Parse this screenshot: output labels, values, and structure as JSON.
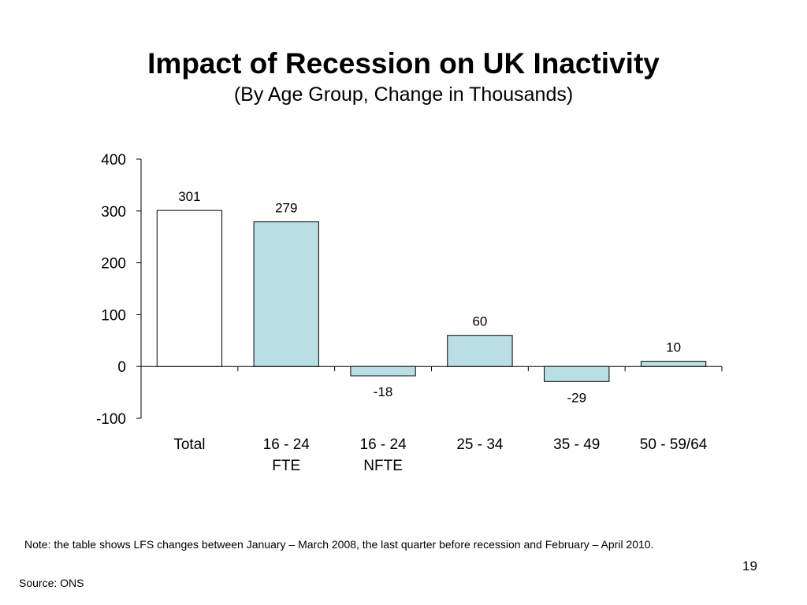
{
  "slide": {
    "title": "Impact of Recession on UK Inactivity",
    "subtitle": "(By Age Group, Change in Thousands)",
    "note": "Note: the table shows LFS changes between January – March 2008, the last quarter before recession and February – April 2010.",
    "source": "Source: ONS",
    "page_number": "19"
  },
  "chart_data": {
    "type": "bar",
    "title": "Impact of Recession on UK Inactivity",
    "subtitle": "(By Age Group, Change in Thousands)",
    "categories": [
      [
        "Total"
      ],
      [
        "16 - 24",
        "FTE"
      ],
      [
        "16 - 24",
        "NFTE"
      ],
      [
        "25 - 34"
      ],
      [
        "35 - 49"
      ],
      [
        "50 - 59/64"
      ]
    ],
    "values": [
      301,
      279,
      -18,
      60,
      -29,
      10
    ],
    "data_labels": [
      "301",
      "279",
      "-18",
      "60",
      "-29",
      "10"
    ],
    "bar_colors": [
      "#ffffff",
      "#b9dfe4",
      "#b9dfe4",
      "#b9dfe4",
      "#b9dfe4",
      "#b9dfe4"
    ],
    "bar_border_color": "#000000",
    "ylim": [
      -100,
      400
    ],
    "yticks": [
      -100,
      0,
      100,
      200,
      300,
      400
    ],
    "xlabel": "",
    "ylabel": "",
    "grid": false,
    "legend": false
  }
}
